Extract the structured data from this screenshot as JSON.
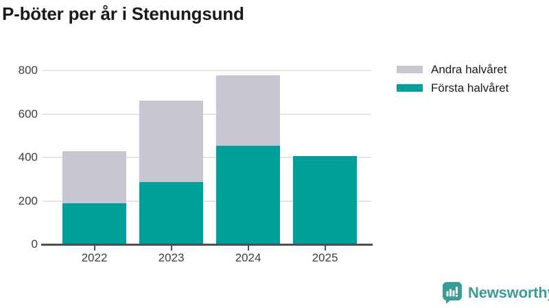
{
  "title": "P-böter per år i Stenungsund",
  "chart_data": {
    "type": "bar",
    "stacked": true,
    "title": "P-böter per år i Stenungsund",
    "xlabel": "",
    "ylabel": "",
    "categories": [
      "2022",
      "2023",
      "2024",
      "2025"
    ],
    "series": [
      {
        "name": "Första halvåret",
        "color": "#00a09a",
        "values": [
          190,
          287,
          454,
          405
        ]
      },
      {
        "name": "Andra halvåret",
        "color": "#c8c6d0",
        "values": [
          238,
          375,
          324,
          0
        ]
      }
    ],
    "ylim": [
      0,
      800
    ],
    "yticks": [
      0,
      200,
      400,
      600,
      800
    ],
    "ytick_labels": [
      "0",
      "200",
      "400",
      "600",
      "800"
    ],
    "grid": true,
    "legend_position": "top-right"
  },
  "legend": {
    "items": [
      {
        "label": "Andra halvåret",
        "color": "#c8c6d0"
      },
      {
        "label": "Första halvåret",
        "color": "#00a09a"
      }
    ]
  },
  "branding": {
    "logo_text": "Newsworthy",
    "logo_color": "#3a9b97",
    "logo_icon": "bar-chart-speech-bubble-icon"
  },
  "colors": {
    "axis": "#4d4d4d",
    "grid": "#e4e4e4",
    "tick_text": "#3d3d3d",
    "title_text": "#1a1a1a"
  }
}
